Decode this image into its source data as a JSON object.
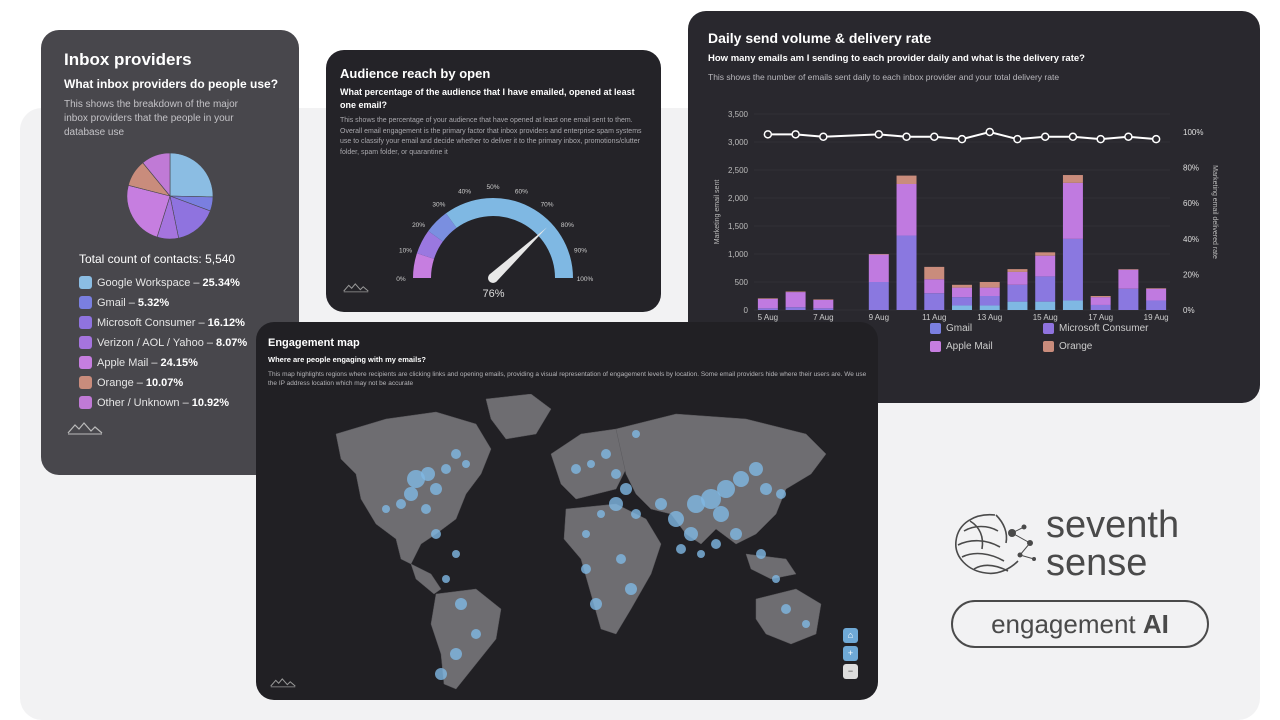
{
  "inbox": {
    "title": "Inbox providers",
    "subtitle": "What inbox providers do people use?",
    "desc": "This shows the breakdown of the major inbox providers that the people in your database use",
    "total": "Total count of contacts: 5,540",
    "providers": [
      {
        "name": "Google Workspace",
        "pct": "25.34%",
        "value": 25.34,
        "color": "#8bbde3"
      },
      {
        "name": "Gmail",
        "pct": "5.32%",
        "value": 5.32,
        "color": "#7a7fe0"
      },
      {
        "name": "Microsoft Consumer",
        "pct": "16.12%",
        "value": 16.12,
        "color": "#8f73df"
      },
      {
        "name": "Verizon / AOL / Yahoo",
        "pct": "8.07%",
        "value": 8.07,
        "color": "#a574de"
      },
      {
        "name": "Apple Mail",
        "pct": "24.15%",
        "value": 24.15,
        "color": "#c67ee0"
      },
      {
        "name": "Orange",
        "pct": "10.07%",
        "value": 10.07,
        "color": "#c98c7c"
      },
      {
        "name": "Other / Unknown",
        "pct": "10.92%",
        "value": 10.92,
        "color": "#c07ad6"
      }
    ]
  },
  "audience": {
    "title": "Audience reach by open",
    "subtitle": "What percentage of the audience that I have emailed, opened at least one email?",
    "desc": "This shows the percentage of your audience that have opened at least one email sent to them. Overall email engagement is the primary factor that inbox providers and enterprise spam systems use to classify your email and decide whether to deliver it to the primary inbox, promotions/clutter folder, spam folder, or quarantine it",
    "value": 76,
    "value_label": "76%",
    "ticks": [
      "0%",
      "10%",
      "20%",
      "30%",
      "40%",
      "50%",
      "60%",
      "70%",
      "80%",
      "90%",
      "100%"
    ]
  },
  "daily": {
    "title": "Daily send volume & delivery rate",
    "subtitle": "How many emails am I sending to each provider daily and what is the delivery rate?",
    "desc": "This shows the number of emails sent daily to each inbox provider and your total delivery rate",
    "ylabel": "Marketing email sent",
    "y2label": "Marketing email delivered rate",
    "yticks": [
      "3,500",
      "3,000",
      "2,500",
      "2,000",
      "1,500",
      "1,000",
      "500",
      "0"
    ],
    "y2ticks": [
      "100%",
      "80%",
      "60%",
      "40%",
      "20%",
      "0%"
    ],
    "xticks": [
      "5 Aug",
      "7 Aug",
      "9 Aug",
      "11 Aug",
      "13 Aug",
      "15 Aug",
      "17 Aug",
      "19 Aug"
    ],
    "legend": [
      {
        "name": "Gmail",
        "color": "#7a7fe0"
      },
      {
        "name": "Microsoft Consumer",
        "color": "#8f73df"
      },
      {
        "name": "Apple Mail",
        "color": "#c67ee0"
      },
      {
        "name": "Orange",
        "color": "#c98c7c"
      }
    ]
  },
  "chart_data": {
    "type": "bar",
    "categories": [
      "5 Aug",
      "6 Aug",
      "7 Aug",
      "8 Aug",
      "9 Aug",
      "10 Aug",
      "11 Aug",
      "12 Aug",
      "13 Aug",
      "14 Aug",
      "15 Aug",
      "16 Aug",
      "17 Aug",
      "18 Aug",
      "19 Aug"
    ],
    "series": [
      {
        "name": "Gmail",
        "color": "#7a7fe0",
        "values": [
          0,
          0,
          0,
          0,
          0,
          0,
          0,
          0,
          0,
          0,
          0,
          0,
          0,
          0,
          0
        ]
      },
      {
        "name": "Microsoft Consumer",
        "color": "#8f73df",
        "values": [
          0,
          0,
          0,
          0,
          0,
          0,
          0,
          0,
          0,
          0,
          0,
          0,
          0,
          0,
          0
        ]
      },
      {
        "name": "Apple Mail",
        "color": "#c67ee0",
        "values": [
          0,
          0,
          0,
          0,
          0,
          0,
          0,
          0,
          0,
          0,
          0,
          0,
          0,
          0,
          0
        ]
      },
      {
        "name": "Orange",
        "color": "#c98c7c",
        "values": [
          0,
          0,
          0,
          0,
          0,
          0,
          0,
          0,
          0,
          0,
          0,
          0,
          0,
          0,
          0
        ]
      }
    ],
    "stacks": [
      [
        0,
        30,
        170,
        10
      ],
      [
        0,
        50,
        270,
        10
      ],
      [
        0,
        30,
        150,
        10
      ],
      [
        0,
        0,
        0,
        0
      ],
      [
        0,
        500,
        490,
        10
      ],
      [
        0,
        1330,
        920,
        150
      ],
      [
        0,
        300,
        250,
        220
      ],
      [
        80,
        150,
        170,
        50
      ],
      [
        80,
        170,
        150,
        100
      ],
      [
        150,
        300,
        230,
        50
      ],
      [
        150,
        450,
        370,
        60
      ],
      [
        170,
        1100,
        1000,
        140
      ],
      [
        0,
        90,
        140,
        20
      ],
      [
        0,
        380,
        340,
        10
      ],
      [
        0,
        170,
        210,
        10
      ]
    ],
    "delivery_rate": [
      98,
      98,
      97,
      null,
      98,
      97,
      97,
      96,
      99,
      96,
      97,
      97,
      96,
      97,
      96
    ],
    "ylim": [
      0,
      3500
    ],
    "y2lim": [
      0,
      100
    ]
  },
  "map": {
    "title": "Engagement map",
    "subtitle": "Where are people engaging with my emails?",
    "desc": "This map highlights regions where recipients are clicking links and opening emails, providing a visual representation of engagement levels by location. Some email providers hide where their users are. We use the IP address location which may not be accurate",
    "home_icon": "⌂",
    "zoom_in": "+",
    "zoom_out": "−"
  },
  "brand": {
    "line1": "seventh",
    "line2": "sense",
    "tag_prefix": "engagement ",
    "tag_bold": "AI"
  }
}
